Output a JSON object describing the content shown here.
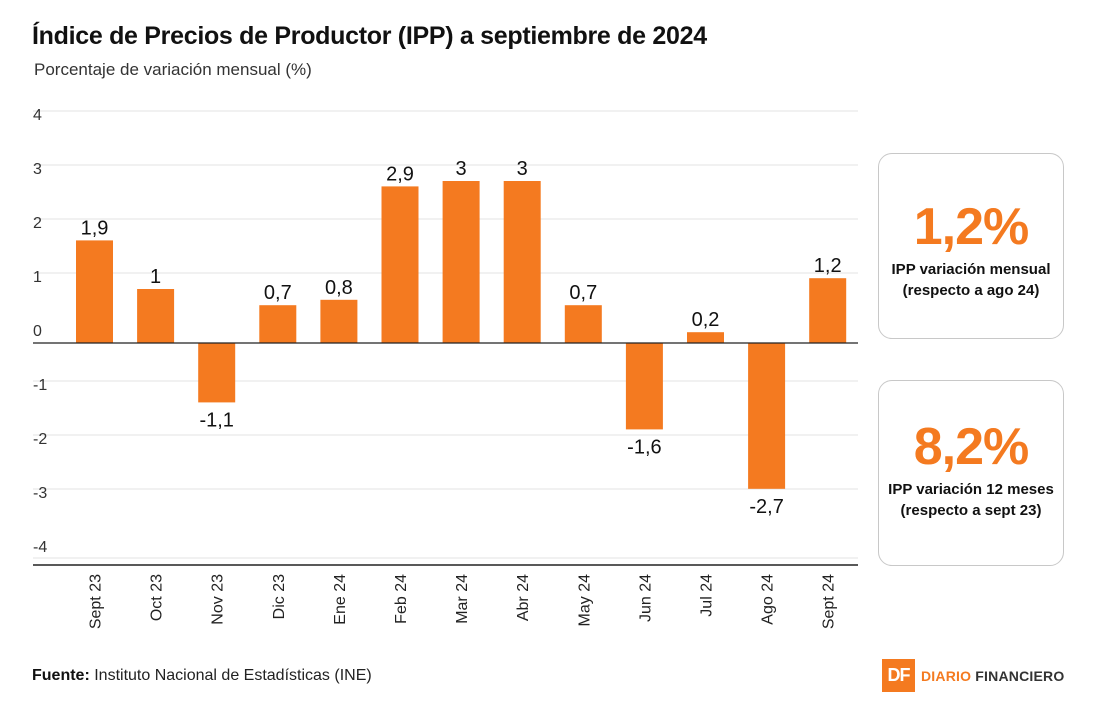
{
  "header": {
    "title": "Índice de Precios de Productor (IPP) a septiembre de 2024",
    "subtitle": "Porcentaje de variación mensual (%)"
  },
  "cards": [
    {
      "value": "1,2%",
      "label_line1": "IPP variación mensual",
      "label_line2": "(respecto a ago 24)"
    },
    {
      "value": "8,2%",
      "label_line1": "IPP variación 12 meses",
      "label_line2": "(respecto a sept 23)"
    }
  ],
  "footer": {
    "source_label": "Fuente:",
    "source_text": "Instituto Nacional de Estadísticas (INE)",
    "logo_mark": "DF",
    "logo_word1": "DIARIO",
    "logo_word2": "FINANCIERO"
  },
  "colors": {
    "bar": "#f47a20",
    "grid": "#e3e3e3",
    "axis": "#222222"
  },
  "chart_data": {
    "type": "bar",
    "categories": [
      "Sept 23",
      "Oct 23",
      "Nov 23",
      "Dic 23",
      "Ene 24",
      "Feb 24",
      "Mar 24",
      "Abr 24",
      "May 24",
      "Jun 24",
      "Jul 24",
      "Ago 24",
      "Sept 24"
    ],
    "values": [
      1.9,
      1,
      -1.1,
      0.7,
      0.8,
      2.9,
      3,
      3,
      0.7,
      -1.6,
      0.2,
      -2.7,
      1.2
    ],
    "data_labels": [
      "1,9",
      "1",
      "-1,1",
      "0,7",
      "0,8",
      "2,9",
      "3",
      "3",
      "0,7",
      "-1,6",
      "0,2",
      "-2,7",
      "1,2"
    ],
    "ylim": [
      -4,
      4
    ],
    "yticks": [
      4,
      3,
      2,
      1,
      0,
      -1,
      -2,
      -3,
      -4
    ],
    "title": "Índice de Precios de Productor (IPP) a septiembre de 2024",
    "ylabel": "Porcentaje de variación mensual (%)",
    "grid": true
  }
}
